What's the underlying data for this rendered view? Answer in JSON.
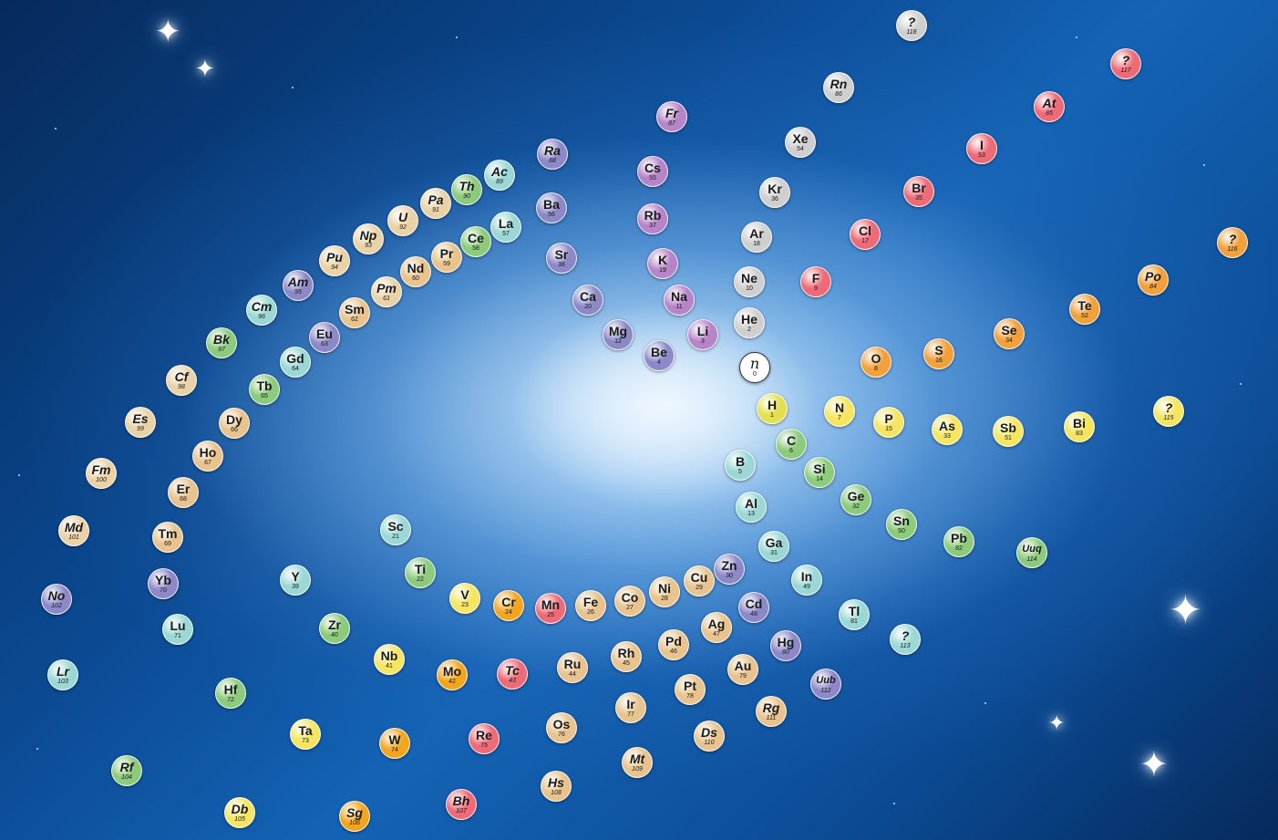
{
  "palette": {
    "alkali": "#b784c9",
    "alkaline": "#8d89c9",
    "noble": "#cfcfcf",
    "halogen": "#ee6a77",
    "chalcogen": "#f2a03a",
    "pnictogen": "#f5e561",
    "carbon": "#8cca7c",
    "boron": "#9bd8d5",
    "transition": "#e8c38e",
    "group6": "#f3a61d",
    "lanthanide": "#c8e6c0",
    "actinide": "#ead2a7",
    "hydrogen": "#e3e04f",
    "neutron": "#ffffff"
  },
  "elements": [
    {
      "symbol": "n",
      "number": "0",
      "group": "neutron",
      "synthetic": false
    },
    {
      "symbol": "H",
      "number": "1",
      "group": "hydrogen",
      "synthetic": false
    },
    {
      "symbol": "He",
      "number": "2",
      "group": "noble",
      "synthetic": false
    },
    {
      "symbol": "Li",
      "number": "3",
      "group": "alkali",
      "synthetic": false
    },
    {
      "symbol": "Be",
      "number": "4",
      "group": "alkaline",
      "synthetic": false
    },
    {
      "symbol": "B",
      "number": "5",
      "group": "boron",
      "synthetic": false
    },
    {
      "symbol": "C",
      "number": "6",
      "group": "carbon",
      "synthetic": false
    },
    {
      "symbol": "N",
      "number": "7",
      "group": "pnictogen",
      "synthetic": false
    },
    {
      "symbol": "O",
      "number": "8",
      "group": "chalcogen",
      "synthetic": false
    },
    {
      "symbol": "F",
      "number": "9",
      "group": "halogen",
      "synthetic": false
    },
    {
      "symbol": "Ne",
      "number": "10",
      "group": "noble",
      "synthetic": false
    },
    {
      "symbol": "Na",
      "number": "11",
      "group": "alkali",
      "synthetic": false
    },
    {
      "symbol": "Mg",
      "number": "12",
      "group": "alkaline",
      "synthetic": false
    },
    {
      "symbol": "Al",
      "number": "13",
      "group": "boron",
      "synthetic": false
    },
    {
      "symbol": "Si",
      "number": "14",
      "group": "carbon",
      "synthetic": false
    },
    {
      "symbol": "P",
      "number": "15",
      "group": "pnictogen",
      "synthetic": false
    },
    {
      "symbol": "S",
      "number": "16",
      "group": "chalcogen",
      "synthetic": false
    },
    {
      "symbol": "Cl",
      "number": "17",
      "group": "halogen",
      "synthetic": false
    },
    {
      "symbol": "Ar",
      "number": "18",
      "group": "noble",
      "synthetic": false
    },
    {
      "symbol": "K",
      "number": "19",
      "group": "alkali",
      "synthetic": false
    },
    {
      "symbol": "Ca",
      "number": "20",
      "group": "alkaline",
      "synthetic": false
    },
    {
      "symbol": "Sc",
      "number": "21",
      "group": "boron",
      "synthetic": false
    },
    {
      "symbol": "Ti",
      "number": "22",
      "group": "carbon",
      "synthetic": false
    },
    {
      "symbol": "V",
      "number": "23",
      "group": "pnictogen",
      "synthetic": false
    },
    {
      "symbol": "Cr",
      "number": "24",
      "group": "group6",
      "synthetic": false
    },
    {
      "symbol": "Mn",
      "number": "25",
      "group": "halogen",
      "synthetic": false
    },
    {
      "symbol": "Fe",
      "number": "26",
      "group": "transition",
      "synthetic": false
    },
    {
      "symbol": "Co",
      "number": "27",
      "group": "transition",
      "synthetic": false
    },
    {
      "symbol": "Ni",
      "number": "28",
      "group": "transition",
      "synthetic": false
    },
    {
      "symbol": "Cu",
      "number": "29",
      "group": "transition",
      "synthetic": false
    },
    {
      "symbol": "Zn",
      "number": "30",
      "group": "alkaline",
      "synthetic": false
    },
    {
      "symbol": "Ga",
      "number": "31",
      "group": "boron",
      "synthetic": false
    },
    {
      "symbol": "Ge",
      "number": "32",
      "group": "carbon",
      "synthetic": false
    },
    {
      "symbol": "As",
      "number": "33",
      "group": "pnictogen",
      "synthetic": false
    },
    {
      "symbol": "Se",
      "number": "34",
      "group": "chalcogen",
      "synthetic": false
    },
    {
      "symbol": "Br",
      "number": "35",
      "group": "halogen",
      "synthetic": false
    },
    {
      "symbol": "Kr",
      "number": "36",
      "group": "noble",
      "synthetic": false
    },
    {
      "symbol": "Rb",
      "number": "37",
      "group": "alkali",
      "synthetic": false
    },
    {
      "symbol": "Sr",
      "number": "38",
      "group": "alkaline",
      "synthetic": false
    },
    {
      "symbol": "Y",
      "number": "39",
      "group": "boron",
      "synthetic": false
    },
    {
      "symbol": "Zr",
      "number": "40",
      "group": "carbon",
      "synthetic": false
    },
    {
      "symbol": "Nb",
      "number": "41",
      "group": "pnictogen",
      "synthetic": false
    },
    {
      "symbol": "Mo",
      "number": "42",
      "group": "group6",
      "synthetic": false
    },
    {
      "symbol": "Tc",
      "number": "43",
      "group": "halogen",
      "synthetic": true
    },
    {
      "symbol": "Ru",
      "number": "44",
      "group": "transition",
      "synthetic": false
    },
    {
      "symbol": "Rh",
      "number": "45",
      "group": "transition",
      "synthetic": false
    },
    {
      "symbol": "Pd",
      "number": "46",
      "group": "transition",
      "synthetic": false
    },
    {
      "symbol": "Ag",
      "number": "47",
      "group": "transition",
      "synthetic": false
    },
    {
      "symbol": "Cd",
      "number": "48",
      "group": "alkaline",
      "synthetic": false
    },
    {
      "symbol": "In",
      "number": "49",
      "group": "boron",
      "synthetic": false
    },
    {
      "symbol": "Sn",
      "number": "50",
      "group": "carbon",
      "synthetic": false
    },
    {
      "symbol": "Sb",
      "number": "51",
      "group": "pnictogen",
      "synthetic": false
    },
    {
      "symbol": "Te",
      "number": "52",
      "group": "chalcogen",
      "synthetic": false
    },
    {
      "symbol": "I",
      "number": "53",
      "group": "halogen",
      "synthetic": false
    },
    {
      "symbol": "Xe",
      "number": "54",
      "group": "noble",
      "synthetic": false
    },
    {
      "symbol": "Cs",
      "number": "55",
      "group": "alkali",
      "synthetic": false
    },
    {
      "symbol": "Ba",
      "number": "56",
      "group": "alkaline",
      "synthetic": false
    },
    {
      "symbol": "La",
      "number": "57",
      "group": "boron",
      "synthetic": false
    },
    {
      "symbol": "Ce",
      "number": "58",
      "group": "carbon",
      "synthetic": false
    },
    {
      "symbol": "Pr",
      "number": "59",
      "group": "transition",
      "synthetic": false
    },
    {
      "symbol": "Nd",
      "number": "60",
      "group": "transition",
      "synthetic": false
    },
    {
      "symbol": "Pm",
      "number": "61",
      "group": "actinide",
      "synthetic": true
    },
    {
      "symbol": "Sm",
      "number": "62",
      "group": "transition",
      "synthetic": false
    },
    {
      "symbol": "Eu",
      "number": "63",
      "group": "alkaline",
      "synthetic": false
    },
    {
      "symbol": "Gd",
      "number": "64",
      "group": "boron",
      "synthetic": false
    },
    {
      "symbol": "Tb",
      "number": "65",
      "group": "carbon",
      "synthetic": false
    },
    {
      "symbol": "Dy",
      "number": "66",
      "group": "transition",
      "synthetic": false
    },
    {
      "symbol": "Ho",
      "number": "67",
      "group": "transition",
      "synthetic": false
    },
    {
      "symbol": "Er",
      "number": "68",
      "group": "transition",
      "synthetic": false
    },
    {
      "symbol": "Tm",
      "number": "69",
      "group": "transition",
      "synthetic": false
    },
    {
      "symbol": "Yb",
      "number": "70",
      "group": "alkaline",
      "synthetic": false
    },
    {
      "symbol": "Lu",
      "number": "71",
      "group": "boron",
      "synthetic": false
    },
    {
      "symbol": "Hf",
      "number": "72",
      "group": "carbon",
      "synthetic": false
    },
    {
      "symbol": "Ta",
      "number": "73",
      "group": "pnictogen",
      "synthetic": false
    },
    {
      "symbol": "W",
      "number": "74",
      "group": "group6",
      "synthetic": false
    },
    {
      "symbol": "Re",
      "number": "75",
      "group": "halogen",
      "synthetic": false
    },
    {
      "symbol": "Os",
      "number": "76",
      "group": "transition",
      "synthetic": false
    },
    {
      "symbol": "Ir",
      "number": "77",
      "group": "transition",
      "synthetic": false
    },
    {
      "symbol": "Pt",
      "number": "78",
      "group": "transition",
      "synthetic": false
    },
    {
      "symbol": "Au",
      "number": "79",
      "group": "transition",
      "synthetic": false
    },
    {
      "symbol": "Hg",
      "number": "80",
      "group": "alkaline",
      "synthetic": false
    },
    {
      "symbol": "Tl",
      "number": "81",
      "group": "boron",
      "synthetic": false
    },
    {
      "symbol": "Pb",
      "number": "82",
      "group": "carbon",
      "synthetic": false
    },
    {
      "symbol": "Bi",
      "number": "83",
      "group": "pnictogen",
      "synthetic": false
    },
    {
      "symbol": "Po",
      "number": "84",
      "group": "chalcogen",
      "synthetic": true
    },
    {
      "symbol": "At",
      "number": "85",
      "group": "halogen",
      "synthetic": true
    },
    {
      "symbol": "Rn",
      "number": "86",
      "group": "noble",
      "synthetic": true
    },
    {
      "symbol": "Fr",
      "number": "87",
      "group": "alkali",
      "synthetic": true
    },
    {
      "symbol": "Ra",
      "number": "88",
      "group": "alkaline",
      "synthetic": true
    },
    {
      "symbol": "Ac",
      "number": "89",
      "group": "boron",
      "synthetic": true
    },
    {
      "symbol": "Th",
      "number": "90",
      "group": "carbon",
      "synthetic": true
    },
    {
      "symbol": "Pa",
      "number": "91",
      "group": "actinide",
      "synthetic": true
    },
    {
      "symbol": "U",
      "number": "92",
      "group": "actinide",
      "synthetic": true
    },
    {
      "symbol": "Np",
      "number": "93",
      "group": "actinide",
      "synthetic": true
    },
    {
      "symbol": "Pu",
      "number": "94",
      "group": "actinide",
      "synthetic": true
    },
    {
      "symbol": "Am",
      "number": "95",
      "group": "alkaline",
      "synthetic": true
    },
    {
      "symbol": "Cm",
      "number": "96",
      "group": "boron",
      "synthetic": true
    },
    {
      "symbol": "Bk",
      "number": "97",
      "group": "carbon",
      "synthetic": true
    },
    {
      "symbol": "Cf",
      "number": "98",
      "group": "actinide",
      "synthetic": true
    },
    {
      "symbol": "Es",
      "number": "99",
      "group": "actinide",
      "synthetic": true
    },
    {
      "symbol": "Fm",
      "number": "100",
      "group": "actinide",
      "synthetic": true
    },
    {
      "symbol": "Md",
      "number": "101",
      "group": "actinide",
      "synthetic": true
    },
    {
      "symbol": "No",
      "number": "102",
      "group": "alkaline",
      "synthetic": true
    },
    {
      "symbol": "Lr",
      "number": "103",
      "group": "boron",
      "synthetic": true
    },
    {
      "symbol": "Rf",
      "number": "104",
      "group": "carbon",
      "synthetic": true
    },
    {
      "symbol": "Db",
      "number": "105",
      "group": "pnictogen",
      "synthetic": true
    },
    {
      "symbol": "Sg",
      "number": "106",
      "group": "group6",
      "synthetic": true
    },
    {
      "symbol": "Bh",
      "number": "107",
      "group": "halogen",
      "synthetic": true
    },
    {
      "symbol": "Hs",
      "number": "108",
      "group": "transition",
      "synthetic": true
    },
    {
      "symbol": "Mt",
      "number": "109",
      "group": "transition",
      "synthetic": true
    },
    {
      "symbol": "Ds",
      "number": "110",
      "group": "transition",
      "synthetic": true
    },
    {
      "symbol": "Rg",
      "number": "111",
      "group": "transition",
      "synthetic": true
    },
    {
      "symbol": "Uub",
      "number": "112",
      "group": "alkaline",
      "synthetic": true
    },
    {
      "symbol": "?",
      "number": "113",
      "group": "boron",
      "synthetic": true
    },
    {
      "symbol": "Uuq",
      "number": "114",
      "group": "carbon",
      "synthetic": true
    },
    {
      "symbol": "?",
      "number": "115",
      "group": "pnictogen",
      "synthetic": true
    },
    {
      "symbol": "?",
      "number": "116",
      "group": "chalcogen",
      "synthetic": true
    },
    {
      "symbol": "?",
      "number": "117",
      "group": "halogen",
      "synthetic": true
    },
    {
      "symbol": "?",
      "number": "118",
      "group": "noble",
      "synthetic": true
    }
  ]
}
